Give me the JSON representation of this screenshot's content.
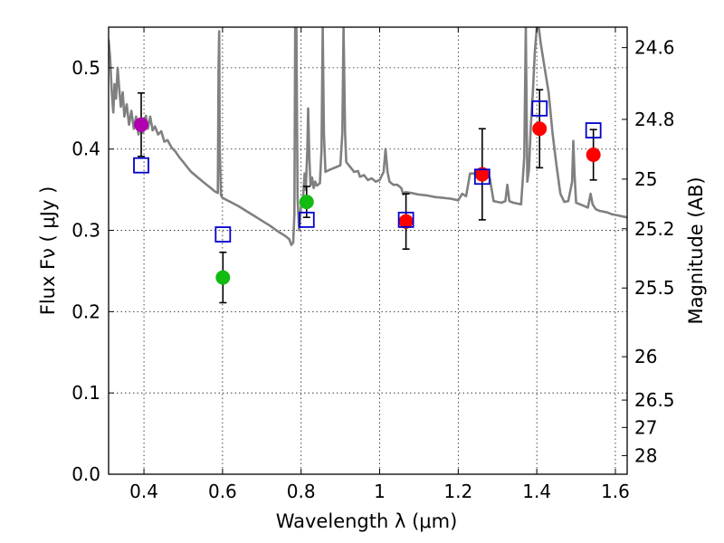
{
  "chart_data": {
    "type": "scatter",
    "xlabel": "Wavelength  λ (μm)",
    "ylabel": "Flux  Fν  ( μJy )",
    "y2label": "Magnitude (AB)",
    "xlim": [
      0.31,
      1.63
    ],
    "ylim": [
      0.0,
      0.55
    ],
    "grid": true,
    "x_ticks": [
      {
        "value": 0.4,
        "label": "0.4"
      },
      {
        "value": 0.6,
        "label": "0.6"
      },
      {
        "value": 0.8,
        "label": "0.8"
      },
      {
        "value": 1.0,
        "label": "1"
      },
      {
        "value": 1.2,
        "label": "1.2"
      },
      {
        "value": 1.4,
        "label": "1.4"
      },
      {
        "value": 1.6,
        "label": "1.6"
      }
    ],
    "y_ticks": [
      {
        "value": 0.0,
        "label": "0.0"
      },
      {
        "value": 0.1,
        "label": "0.1"
      },
      {
        "value": 0.2,
        "label": "0.2"
      },
      {
        "value": 0.3,
        "label": "0.3"
      },
      {
        "value": 0.4,
        "label": "0.4"
      },
      {
        "value": 0.5,
        "label": "0.5"
      }
    ],
    "y2_ticks": [
      {
        "magnitude": 24.6,
        "label": "24.6"
      },
      {
        "magnitude": 24.8,
        "label": "24.8"
      },
      {
        "magnitude": 25.0,
        "label": "25"
      },
      {
        "magnitude": 25.2,
        "label": "25.2"
      },
      {
        "magnitude": 25.5,
        "label": "25.5"
      },
      {
        "magnitude": 26.0,
        "label": "26"
      },
      {
        "magnitude": 26.5,
        "label": "26.5"
      },
      {
        "magnitude": 27.0,
        "label": "27"
      },
      {
        "magnitude": 28.0,
        "label": "28"
      }
    ],
    "colors": {
      "model": "#808080",
      "model_box": "#0000cc",
      "errorbar": "#000000",
      "purple": "#b000b0",
      "green": "#11bb11",
      "red": "#ff0000"
    },
    "observed": [
      {
        "x": 0.393,
        "y": 0.43,
        "yerr": 0.039,
        "color": "purple"
      },
      {
        "x": 0.601,
        "y": 0.242,
        "yerr": 0.031,
        "color": "green"
      },
      {
        "x": 0.814,
        "y": 0.335,
        "yerr": 0.019,
        "color": "green"
      },
      {
        "x": 1.067,
        "y": 0.311,
        "yerr": 0.034,
        "color": "red"
      },
      {
        "x": 1.261,
        "y": 0.369,
        "yerr": 0.056,
        "color": "red"
      },
      {
        "x": 1.407,
        "y": 0.425,
        "yerr": 0.048,
        "color": "red"
      },
      {
        "x": 1.544,
        "y": 0.393,
        "yerr": 0.031,
        "color": "red"
      }
    ],
    "model_bands": [
      {
        "x": 0.393,
        "y": 0.38
      },
      {
        "x": 0.601,
        "y": 0.295
      },
      {
        "x": 0.814,
        "y": 0.313
      },
      {
        "x": 1.067,
        "y": 0.313
      },
      {
        "x": 1.261,
        "y": 0.366
      },
      {
        "x": 1.407,
        "y": 0.45
      },
      {
        "x": 1.544,
        "y": 0.423
      }
    ],
    "model_spectrum": [
      [
        0.31,
        0.535
      ],
      [
        0.314,
        0.512
      ],
      [
        0.318,
        0.47
      ],
      [
        0.322,
        0.445
      ],
      [
        0.325,
        0.48
      ],
      [
        0.329,
        0.462
      ],
      [
        0.333,
        0.5
      ],
      [
        0.337,
        0.475
      ],
      [
        0.341,
        0.452
      ],
      [
        0.346,
        0.47
      ],
      [
        0.35,
        0.44
      ],
      [
        0.356,
        0.455
      ],
      [
        0.362,
        0.43
      ],
      [
        0.368,
        0.447
      ],
      [
        0.374,
        0.425
      ],
      [
        0.38,
        0.44
      ],
      [
        0.386,
        0.418
      ],
      [
        0.392,
        0.432
      ],
      [
        0.398,
        0.42
      ],
      [
        0.405,
        0.441
      ],
      [
        0.41,
        0.425
      ],
      [
        0.416,
        0.44
      ],
      [
        0.422,
        0.423
      ],
      [
        0.428,
        0.428
      ],
      [
        0.436,
        0.418
      ],
      [
        0.444,
        0.422
      ],
      [
        0.452,
        0.409
      ],
      [
        0.46,
        0.411
      ],
      [
        0.47,
        0.402
      ],
      [
        0.48,
        0.397
      ],
      [
        0.49,
        0.39
      ],
      [
        0.5,
        0.384
      ],
      [
        0.51,
        0.378
      ],
      [
        0.52,
        0.372
      ],
      [
        0.53,
        0.368
      ],
      [
        0.54,
        0.364
      ],
      [
        0.55,
        0.36
      ],
      [
        0.56,
        0.356
      ],
      [
        0.57,
        0.352
      ],
      [
        0.58,
        0.348
      ],
      [
        0.588,
        0.346
      ],
      [
        0.59,
        0.5
      ],
      [
        0.5915,
        0.545
      ],
      [
        0.593,
        0.4
      ],
      [
        0.596,
        0.343
      ],
      [
        0.6,
        0.34
      ],
      [
        0.62,
        0.335
      ],
      [
        0.64,
        0.33
      ],
      [
        0.66,
        0.324
      ],
      [
        0.68,
        0.318
      ],
      [
        0.7,
        0.312
      ],
      [
        0.72,
        0.306
      ],
      [
        0.74,
        0.299
      ],
      [
        0.76,
        0.293
      ],
      [
        0.77,
        0.289
      ],
      [
        0.775,
        0.282
      ],
      [
        0.78,
        0.285
      ],
      [
        0.783,
        0.32
      ],
      [
        0.785,
        0.55
      ],
      [
        0.788,
        0.55
      ],
      [
        0.791,
        0.34
      ],
      [
        0.795,
        0.3
      ],
      [
        0.8,
        0.33
      ],
      [
        0.805,
        0.34
      ],
      [
        0.809,
        0.37
      ],
      [
        0.812,
        0.35
      ],
      [
        0.816,
        0.4
      ],
      [
        0.818,
        0.45
      ],
      [
        0.821,
        0.39
      ],
      [
        0.824,
        0.355
      ],
      [
        0.828,
        0.365
      ],
      [
        0.832,
        0.352
      ],
      [
        0.836,
        0.36
      ],
      [
        0.84,
        0.355
      ],
      [
        0.848,
        0.358
      ],
      [
        0.852,
        0.4
      ],
      [
        0.855,
        0.55
      ],
      [
        0.858,
        0.42
      ],
      [
        0.862,
        0.372
      ],
      [
        0.87,
        0.374
      ],
      [
        0.88,
        0.376
      ],
      [
        0.89,
        0.378
      ],
      [
        0.9,
        0.38
      ],
      [
        0.905,
        0.42
      ],
      [
        0.908,
        0.55
      ],
      [
        0.912,
        0.42
      ],
      [
        0.915,
        0.384
      ],
      [
        0.925,
        0.378
      ],
      [
        0.935,
        0.372
      ],
      [
        0.945,
        0.373
      ],
      [
        0.95,
        0.366
      ],
      [
        0.96,
        0.368
      ],
      [
        0.97,
        0.362
      ],
      [
        0.98,
        0.364
      ],
      [
        0.99,
        0.36
      ],
      [
        1.0,
        0.362
      ],
      [
        1.01,
        0.372
      ],
      [
        1.015,
        0.4
      ],
      [
        1.02,
        0.372
      ],
      [
        1.025,
        0.36
      ],
      [
        1.035,
        0.356
      ],
      [
        1.045,
        0.356
      ],
      [
        1.055,
        0.352
      ],
      [
        1.06,
        0.344
      ],
      [
        1.065,
        0.347
      ],
      [
        1.08,
        0.346
      ],
      [
        1.1,
        0.344
      ],
      [
        1.12,
        0.343
      ],
      [
        1.14,
        0.341
      ],
      [
        1.16,
        0.34
      ],
      [
        1.18,
        0.339
      ],
      [
        1.2,
        0.337
      ],
      [
        1.21,
        0.345
      ],
      [
        1.22,
        0.342
      ],
      [
        1.23,
        0.37
      ],
      [
        1.24,
        0.37
      ],
      [
        1.25,
        0.365
      ],
      [
        1.26,
        0.372
      ],
      [
        1.27,
        0.367
      ],
      [
        1.28,
        0.365
      ],
      [
        1.29,
        0.336
      ],
      [
        1.3,
        0.335
      ],
      [
        1.31,
        0.334
      ],
      [
        1.32,
        0.336
      ],
      [
        1.325,
        0.356
      ],
      [
        1.33,
        0.336
      ],
      [
        1.34,
        0.334
      ],
      [
        1.35,
        0.333
      ],
      [
        1.36,
        0.332
      ],
      [
        1.368,
        0.39
      ],
      [
        1.372,
        0.55
      ],
      [
        1.376,
        0.36
      ],
      [
        1.38,
        0.375
      ],
      [
        1.385,
        0.43
      ],
      [
        1.39,
        0.47
      ],
      [
        1.395,
        0.52
      ],
      [
        1.4,
        0.55
      ],
      [
        1.405,
        0.55
      ],
      [
        1.41,
        0.53
      ],
      [
        1.42,
        0.5
      ],
      [
        1.43,
        0.47
      ],
      [
        1.44,
        0.42
      ],
      [
        1.45,
        0.38
      ],
      [
        1.46,
        0.345
      ],
      [
        1.47,
        0.335
      ],
      [
        1.48,
        0.336
      ],
      [
        1.49,
        0.36
      ],
      [
        1.493,
        0.41
      ],
      [
        1.496,
        0.37
      ],
      [
        1.5,
        0.334
      ],
      [
        1.51,
        0.332
      ],
      [
        1.52,
        0.33
      ],
      [
        1.53,
        0.328
      ],
      [
        1.537,
        0.345
      ],
      [
        1.542,
        0.332
      ],
      [
        1.55,
        0.326
      ],
      [
        1.56,
        0.324
      ],
      [
        1.57,
        0.323
      ],
      [
        1.58,
        0.322
      ],
      [
        1.59,
        0.32
      ],
      [
        1.6,
        0.319
      ],
      [
        1.61,
        0.318
      ],
      [
        1.62,
        0.317
      ],
      [
        1.63,
        0.316
      ]
    ]
  }
}
